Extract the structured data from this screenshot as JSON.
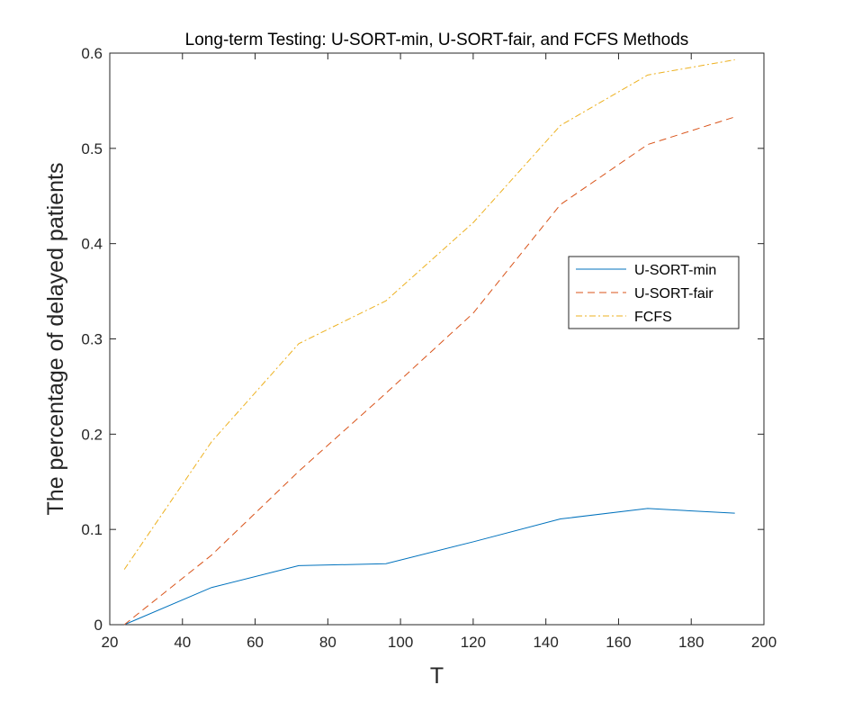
{
  "chart_data": {
    "type": "line",
    "title": "Long-term Testing: U-SORT-min, U-SORT-fair, and FCFS Methods",
    "xlabel": "T",
    "ylabel": "The percentage of delayed patients",
    "xlim": [
      20,
      200
    ],
    "ylim": [
      0,
      0.6
    ],
    "xticks": [
      20,
      40,
      60,
      80,
      100,
      120,
      140,
      160,
      180,
      200
    ],
    "yticks": [
      0,
      0.1,
      0.2,
      0.3,
      0.4,
      0.5,
      0.6
    ],
    "xtick_labels": [
      "20",
      "40",
      "60",
      "80",
      "100",
      "120",
      "140",
      "160",
      "180",
      "200"
    ],
    "ytick_labels": [
      "0",
      "0.1",
      "0.2",
      "0.3",
      "0.4",
      "0.5",
      "0.6"
    ],
    "x": [
      24,
      48,
      72,
      96,
      120,
      144,
      168,
      192
    ],
    "series": [
      {
        "name": "U-SORT-min",
        "color": "#0072BD",
        "dash": "solid",
        "values": [
          0.0,
          0.039,
          0.062,
          0.064,
          0.087,
          0.111,
          0.122,
          0.117
        ]
      },
      {
        "name": "U-SORT-fair",
        "color": "#D95319",
        "dash": "dashed",
        "values": [
          0.0,
          0.073,
          0.161,
          0.243,
          0.327,
          0.441,
          0.504,
          0.533
        ]
      },
      {
        "name": "FCFS",
        "color": "#EDB120",
        "dash": "dashdot",
        "values": [
          0.058,
          0.192,
          0.295,
          0.34,
          0.422,
          0.524,
          0.577,
          0.593
        ]
      }
    ],
    "grid": false,
    "legend_position": "right-middle"
  }
}
